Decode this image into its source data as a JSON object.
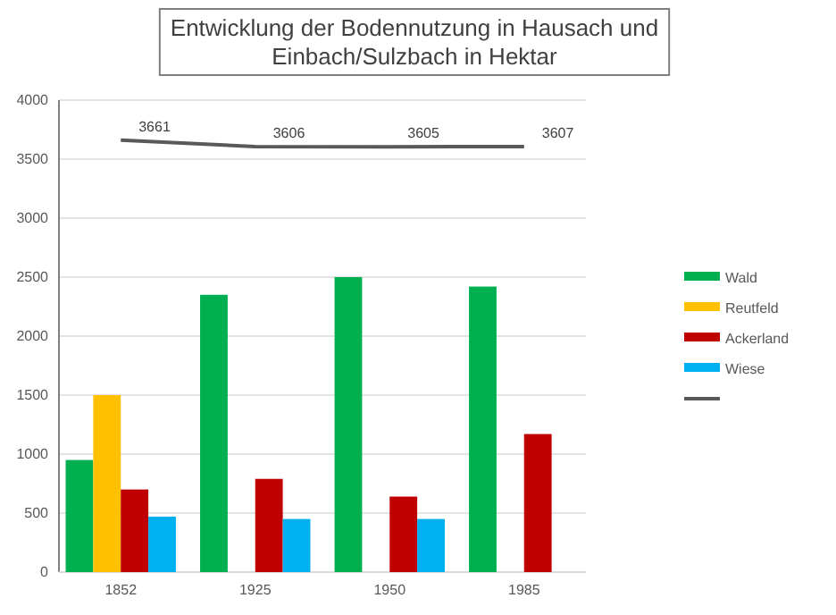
{
  "chart_data": {
    "type": "bar",
    "title": "Entwicklung der Bodennutzung in Hausach und Einbach/Sulzbach in Hektar",
    "categories": [
      "1852",
      "1925",
      "1950",
      "1985"
    ],
    "series": [
      {
        "name": "Wald",
        "color": "#00b050",
        "values": [
          950,
          2350,
          2500,
          2420
        ]
      },
      {
        "name": "Reutfeld",
        "color": "#ffc000",
        "values": [
          1500,
          null,
          null,
          null
        ]
      },
      {
        "name": "Ackerland",
        "color": "#c00000",
        "values": [
          700,
          790,
          640,
          1170
        ]
      },
      {
        "name": "Wiese",
        "color": "#00b0f0",
        "values": [
          470,
          450,
          450,
          null
        ]
      },
      {
        "type": "line",
        "color": "#595959",
        "values": [
          3661,
          3606,
          3605,
          3607
        ],
        "value_labels": [
          "3661",
          "3606",
          "3605",
          "3607"
        ]
      }
    ],
    "ylim": [
      0,
      4000
    ],
    "yticks": [
      0,
      500,
      1000,
      1500,
      2000,
      2500,
      3000,
      3500,
      4000
    ],
    "grid": "y",
    "legend": "right",
    "marker": "none",
    "line_style": "solid"
  }
}
